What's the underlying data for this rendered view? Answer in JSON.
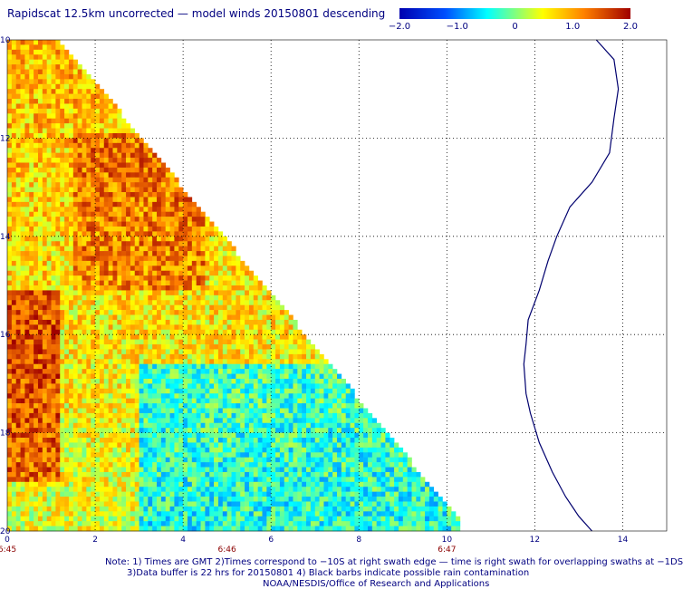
{
  "title": "Rapidscat 12.5km uncorrected — model winds 20150801 descending",
  "colorbar": {
    "ticks": [
      "−2.0",
      "−1.0",
      "0",
      "1.0",
      "2.0"
    ],
    "range": [
      -2.0,
      2.0
    ],
    "colors": [
      "#0000b0",
      "#0050ff",
      "#00ffff",
      "#ffff00",
      "#ff8000",
      "#a00000"
    ]
  },
  "map": {
    "lon_range": [
      0,
      15
    ],
    "lat_range": [
      -20,
      -10
    ],
    "x_ticks": [
      "0",
      "2",
      "4",
      "6",
      "8",
      "10",
      "12",
      "14"
    ],
    "y_ticks": [
      "10",
      "12",
      "14",
      "16",
      "18",
      "20"
    ],
    "time_labels": [
      {
        "lon": 0,
        "text": "6:45"
      },
      {
        "lon": 5,
        "text": "6:46"
      },
      {
        "lon": 10,
        "text": "6:47"
      }
    ],
    "grid": true,
    "swath_edge": "diagonal, lower-left triangle"
  },
  "notes": [
    "Note: 1) Times are GMT 2)Times correspond to −10S at right swath edge — time is right swath for overlapping swaths at −1DS",
    "3)Data buffer is 22 hrs for 20150801  4) Black barbs indicate possible rain contamination",
    "NOAA/NESDIS/Office of Research and Applications"
  ],
  "colors": {
    "text": "#000080",
    "time_text": "#8b0000",
    "coast": "#00006e",
    "grid": "#000000"
  }
}
